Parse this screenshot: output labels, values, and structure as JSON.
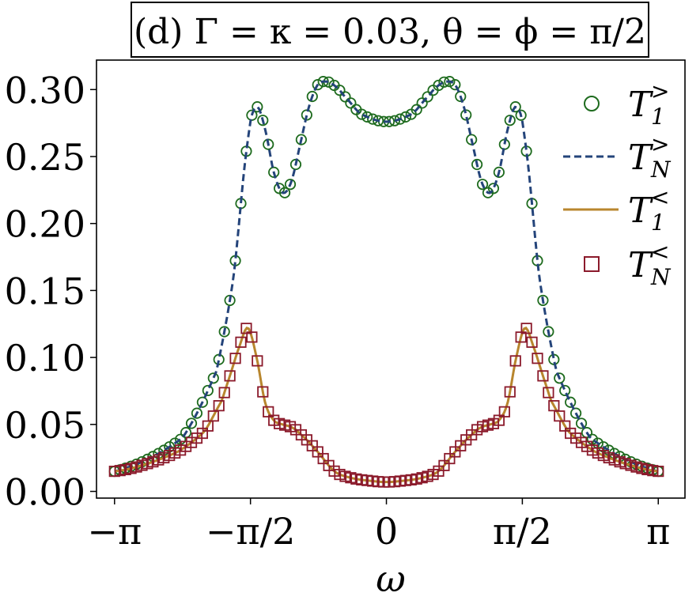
{
  "chart_data": {
    "type": "line",
    "title": "(d) Γ = κ = 0.03, θ = ϕ = π/2",
    "xlabel": "ω",
    "ylabel": "",
    "xlim": [
      -3.35,
      3.45
    ],
    "ylim": [
      -0.005,
      0.322
    ],
    "x_ticks": [
      {
        "value": -3.14159,
        "label": "−π"
      },
      {
        "value": -1.5708,
        "label": "−π/2"
      },
      {
        "value": 0,
        "label": "0"
      },
      {
        "value": 1.5708,
        "label": "π/2"
      },
      {
        "value": 3.14159,
        "label": "π"
      }
    ],
    "y_ticks": [
      {
        "value": 0.0,
        "label": "0.00"
      },
      {
        "value": 0.05,
        "label": "0.05"
      },
      {
        "value": 0.1,
        "label": "0.10"
      },
      {
        "value": 0.15,
        "label": "0.15"
      },
      {
        "value": 0.2,
        "label": "0.20"
      },
      {
        "value": 0.25,
        "label": "0.25"
      },
      {
        "value": 0.3,
        "label": "0.30"
      }
    ],
    "legend_position": "top-right",
    "series": [
      {
        "name": "T1>",
        "label_main": "T",
        "label_sub": "1",
        "label_sup": ">",
        "style": "circle-markers",
        "color": "#1e6b1e",
        "x": [
          -3.1416,
          -2.356,
          -1.963,
          -1.767,
          -1.6,
          -1.5,
          -1.4,
          -1.3,
          -1.2,
          -1.1,
          -1.0,
          -0.9,
          -0.8,
          -0.7,
          -0.6,
          -0.5,
          -0.3,
          0.0,
          0.3,
          0.5,
          0.6,
          0.7,
          0.8,
          0.9,
          1.0,
          1.1,
          1.2,
          1.3,
          1.4,
          1.5,
          1.6,
          1.767,
          1.963,
          2.356,
          3.1416
        ],
        "values": [
          0.015,
          0.04,
          0.09,
          0.16,
          0.262,
          0.287,
          0.27,
          0.238,
          0.223,
          0.231,
          0.258,
          0.286,
          0.303,
          0.306,
          0.303,
          0.296,
          0.282,
          0.276,
          0.282,
          0.296,
          0.303,
          0.306,
          0.303,
          0.286,
          0.258,
          0.231,
          0.223,
          0.238,
          0.27,
          0.287,
          0.262,
          0.16,
          0.09,
          0.04,
          0.015
        ]
      },
      {
        "name": "TN>",
        "label_main": "T",
        "label_sub": "N",
        "label_sup": ">",
        "style": "dashed-line",
        "color": "#24447a",
        "x": [
          -3.1416,
          -2.356,
          -1.963,
          -1.767,
          -1.6,
          -1.5,
          -1.4,
          -1.3,
          -1.2,
          -1.1,
          -1.0,
          -0.9,
          -0.8,
          -0.7,
          -0.6,
          -0.5,
          -0.3,
          0.0,
          0.3,
          0.5,
          0.6,
          0.7,
          0.8,
          0.9,
          1.0,
          1.1,
          1.2,
          1.3,
          1.4,
          1.5,
          1.6,
          1.767,
          1.963,
          2.356,
          3.1416
        ],
        "values": [
          0.015,
          0.04,
          0.09,
          0.16,
          0.262,
          0.287,
          0.27,
          0.238,
          0.223,
          0.231,
          0.258,
          0.286,
          0.303,
          0.306,
          0.303,
          0.296,
          0.282,
          0.276,
          0.282,
          0.296,
          0.303,
          0.306,
          0.303,
          0.286,
          0.258,
          0.231,
          0.223,
          0.238,
          0.27,
          0.287,
          0.262,
          0.16,
          0.09,
          0.04,
          0.015
        ]
      },
      {
        "name": "T1<",
        "label_main": "T",
        "label_sub": "1",
        "label_sup": "<",
        "style": "solid-line",
        "color": "#b8862e",
        "x": [
          -3.1416,
          -2.8,
          -2.4,
          -2.1,
          -1.9,
          -1.8,
          -1.7,
          -1.6,
          -1.5,
          -1.4,
          -1.3,
          -1.2,
          -1.1,
          -1.0,
          -0.8,
          -0.6,
          -0.4,
          -0.2,
          0.0,
          0.2,
          0.4,
          0.6,
          0.8,
          1.0,
          1.1,
          1.2,
          1.3,
          1.4,
          1.5,
          1.6,
          1.7,
          1.8,
          1.9,
          2.1,
          2.4,
          2.8,
          3.1416
        ],
        "values": [
          0.015,
          0.02,
          0.03,
          0.045,
          0.068,
          0.088,
          0.108,
          0.122,
          0.1,
          0.066,
          0.053,
          0.05,
          0.048,
          0.043,
          0.03,
          0.015,
          0.01,
          0.008,
          0.007,
          0.008,
          0.01,
          0.015,
          0.03,
          0.043,
          0.048,
          0.05,
          0.053,
          0.066,
          0.1,
          0.122,
          0.108,
          0.088,
          0.068,
          0.045,
          0.03,
          0.02,
          0.015
        ]
      },
      {
        "name": "TN<",
        "label_main": "T",
        "label_sub": "N",
        "label_sup": "<",
        "style": "square-markers",
        "color": "#8b1a2b",
        "x": [
          -3.1416,
          -2.8,
          -2.4,
          -2.1,
          -1.9,
          -1.8,
          -1.7,
          -1.6,
          -1.5,
          -1.4,
          -1.3,
          -1.2,
          -1.1,
          -1.0,
          -0.8,
          -0.6,
          -0.4,
          -0.2,
          0.0,
          0.2,
          0.4,
          0.6,
          0.8,
          1.0,
          1.1,
          1.2,
          1.3,
          1.4,
          1.5,
          1.6,
          1.7,
          1.8,
          1.9,
          2.1,
          2.4,
          2.8,
          3.1416
        ],
        "values": [
          0.015,
          0.02,
          0.03,
          0.045,
          0.068,
          0.088,
          0.108,
          0.122,
          0.1,
          0.066,
          0.053,
          0.05,
          0.048,
          0.043,
          0.03,
          0.015,
          0.01,
          0.008,
          0.007,
          0.008,
          0.01,
          0.015,
          0.03,
          0.043,
          0.048,
          0.05,
          0.053,
          0.066,
          0.1,
          0.122,
          0.108,
          0.088,
          0.068,
          0.045,
          0.03,
          0.02,
          0.015
        ]
      }
    ]
  }
}
